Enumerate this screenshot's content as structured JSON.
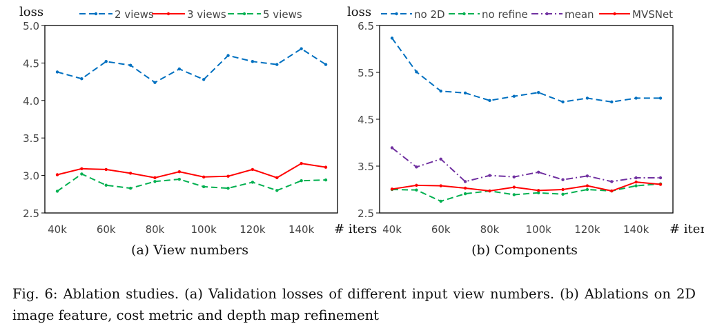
{
  "chart_data": [
    {
      "type": "line",
      "ylabel": "loss",
      "xlabel": "# iters",
      "ylim": [
        2.5,
        5.0
      ],
      "yticks": [
        "2.5",
        "3.0",
        "3.5",
        "4.0",
        "4.5",
        "5.0"
      ],
      "x": [
        40,
        50,
        60,
        70,
        80,
        90,
        100,
        110,
        120,
        130,
        140,
        150
      ],
      "xticklabels": [
        "40k",
        "60k",
        "80k",
        "100k",
        "120k",
        "140k"
      ],
      "grid": false,
      "legend": "top",
      "series": [
        {
          "name": "2 views",
          "color": "#0070C0",
          "style": "dashed",
          "values": [
            4.38,
            4.29,
            4.52,
            4.47,
            4.24,
            4.42,
            4.28,
            4.6,
            4.52,
            4.48,
            4.69,
            4.48
          ]
        },
        {
          "name": "3 views",
          "color": "#FF0000",
          "style": "solid",
          "values": [
            3.01,
            3.09,
            3.08,
            3.03,
            2.97,
            3.05,
            2.98,
            2.99,
            3.08,
            2.97,
            3.16,
            3.11
          ]
        },
        {
          "name": "5 views",
          "color": "#00B050",
          "style": "dashed",
          "values": [
            2.79,
            3.02,
            2.87,
            2.83,
            2.92,
            2.95,
            2.85,
            2.83,
            2.91,
            2.8,
            2.93,
            2.94
          ]
        }
      ],
      "subcaption": "(a) View numbers"
    },
    {
      "type": "line",
      "ylabel": "loss",
      "xlabel": "# iters",
      "ylim": [
        2.5,
        6.5
      ],
      "yticks": [
        "2.5",
        "3.5",
        "4.5",
        "5.5",
        "6.5"
      ],
      "x": [
        40,
        50,
        60,
        70,
        80,
        90,
        100,
        110,
        120,
        130,
        140,
        150
      ],
      "xticklabels": [
        "40k",
        "60k",
        "80k",
        "100k",
        "120k",
        "140k"
      ],
      "grid": false,
      "legend": "top",
      "series": [
        {
          "name": "no 2D",
          "color": "#0070C0",
          "style": "dashed",
          "values": [
            6.23,
            5.51,
            5.1,
            5.06,
            4.9,
            4.99,
            5.07,
            4.87,
            4.95,
            4.87,
            4.95,
            4.95
          ]
        },
        {
          "name": "no refine",
          "color": "#00B050",
          "style": "dashed",
          "values": [
            3.0,
            2.99,
            2.75,
            2.91,
            2.97,
            2.89,
            2.93,
            2.9,
            3.0,
            2.97,
            3.08,
            3.12
          ]
        },
        {
          "name": "mean",
          "color": "#7030A0",
          "style": "dashdot",
          "values": [
            3.89,
            3.48,
            3.65,
            3.17,
            3.3,
            3.27,
            3.37,
            3.21,
            3.29,
            3.17,
            3.25,
            3.25
          ]
        },
        {
          "name": "MVSNet",
          "color": "#FF0000",
          "style": "solid",
          "values": [
            3.01,
            3.09,
            3.08,
            3.03,
            2.97,
            3.05,
            2.98,
            3.0,
            3.08,
            2.97,
            3.16,
            3.11
          ]
        }
      ],
      "subcaption": "(b) Components"
    }
  ],
  "caption": "Fig. 6: Ablation studies. (a) Validation losses of different input view numbers. (b) Ablations on 2D image feature, cost metric and depth map refinement"
}
